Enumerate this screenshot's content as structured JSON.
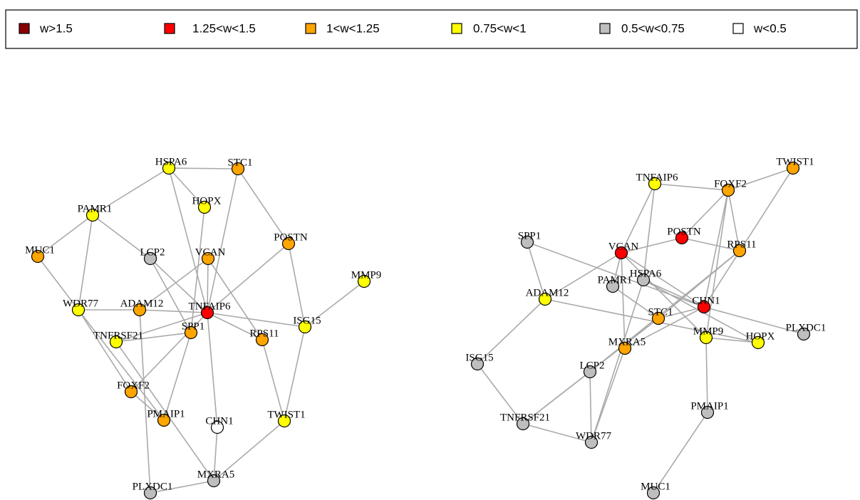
{
  "legend": {
    "items": [
      {
        "label": "w>1.5",
        "color": "#8B0000"
      },
      {
        "label": "1.25<w<1.5",
        "color": "#FF0000"
      },
      {
        "label": "1<w<1.25",
        "color": "#FFA500"
      },
      {
        "label": "0.75<w<1",
        "color": "#FFFF00"
      },
      {
        "label": "0.5<w<0.75",
        "color": "#BEBEBE"
      },
      {
        "label": "w<0.5",
        "color": "#FFFFFF"
      }
    ]
  },
  "networks": [
    {
      "nodes": [
        {
          "label": "HSPA6",
          "color": "#FFFF00"
        },
        {
          "label": "STC1",
          "color": "#FFA500"
        },
        {
          "label": "HOPX",
          "color": "#FFFF00"
        },
        {
          "label": "PAMR1",
          "color": "#FFFF00"
        },
        {
          "label": "POSTN",
          "color": "#FFA500"
        },
        {
          "label": "MUC1",
          "color": "#FFA500"
        },
        {
          "label": "LCP2",
          "color": "#BEBEBE"
        },
        {
          "label": "VCAN",
          "color": "#FFA500"
        },
        {
          "label": "MMP9",
          "color": "#FFFF00"
        },
        {
          "label": "WDR77",
          "color": "#FFFF00"
        },
        {
          "label": "ADAM12",
          "color": "#FFA500"
        },
        {
          "label": "TNFAIP6",
          "color": "#FF0000"
        },
        {
          "label": "ISG15",
          "color": "#FFFF00"
        },
        {
          "label": "SPP1",
          "color": "#FFA500"
        },
        {
          "label": "RPS11",
          "color": "#FFA500"
        },
        {
          "label": "TNFRSF21",
          "color": "#FFFF00"
        },
        {
          "label": "FOXF2",
          "color": "#FFA500"
        },
        {
          "label": "PMAIP1",
          "color": "#FFA500"
        },
        {
          "label": "CHN1",
          "color": "#FFFFFF"
        },
        {
          "label": "TWIST1",
          "color": "#FFFF00"
        },
        {
          "label": "MXRA5",
          "color": "#BEBEBE"
        },
        {
          "label": "PLXDC1",
          "color": "#BEBEBE"
        }
      ],
      "edges": [
        [
          0,
          1
        ],
        [
          0,
          3
        ],
        [
          0,
          2
        ],
        [
          0,
          11
        ],
        [
          1,
          4
        ],
        [
          1,
          11
        ],
        [
          2,
          13
        ],
        [
          3,
          5
        ],
        [
          3,
          6
        ],
        [
          3,
          9
        ],
        [
          5,
          9
        ],
        [
          6,
          11
        ],
        [
          6,
          13
        ],
        [
          7,
          11
        ],
        [
          7,
          14
        ],
        [
          7,
          10
        ],
        [
          4,
          11
        ],
        [
          4,
          12
        ],
        [
          8,
          12
        ],
        [
          9,
          10
        ],
        [
          9,
          16
        ],
        [
          9,
          17
        ],
        [
          10,
          11
        ],
        [
          10,
          21
        ],
        [
          11,
          14
        ],
        [
          11,
          12
        ],
        [
          11,
          15
        ],
        [
          11,
          16
        ],
        [
          11,
          18
        ],
        [
          13,
          17
        ],
        [
          13,
          15
        ],
        [
          14,
          19
        ],
        [
          12,
          19
        ],
        [
          15,
          20
        ],
        [
          16,
          17
        ],
        [
          18,
          20
        ],
        [
          19,
          20
        ],
        [
          20,
          21
        ]
      ]
    },
    {
      "nodes": [
        {
          "label": "TWIST1",
          "color": "#FFA500"
        },
        {
          "label": "TNFAIP6",
          "color": "#FFFF00"
        },
        {
          "label": "FOXF2",
          "color": "#FFA500"
        },
        {
          "label": "POSTN",
          "color": "#FF0000"
        },
        {
          "label": "SPP1",
          "color": "#BEBEBE"
        },
        {
          "label": "VCAN",
          "color": "#FF0000"
        },
        {
          "label": "RPS11",
          "color": "#FFA500"
        },
        {
          "label": "PAMR1",
          "color": "#BEBEBE"
        },
        {
          "label": "HSPA6",
          "color": "#BEBEBE"
        },
        {
          "label": "ADAM12",
          "color": "#FFFF00"
        },
        {
          "label": "CHN1",
          "color": "#FF0000"
        },
        {
          "label": "STC1",
          "color": "#FFA500"
        },
        {
          "label": "MMP9",
          "color": "#FFFF00"
        },
        {
          "label": "HOPX",
          "color": "#FFFF00"
        },
        {
          "label": "PLXDC1",
          "color": "#BEBEBE"
        },
        {
          "label": "MXRA5",
          "color": "#FFA500"
        },
        {
          "label": "ISG15",
          "color": "#BEBEBE"
        },
        {
          "label": "LCP2",
          "color": "#BEBEBE"
        },
        {
          "label": "PMAIP1",
          "color": "#BEBEBE"
        },
        {
          "label": "TNFRSF21",
          "color": "#BEBEBE"
        },
        {
          "label": "WDR77",
          "color": "#BEBEBE"
        },
        {
          "label": "MUC1",
          "color": "#BEBEBE"
        }
      ],
      "edges": [
        [
          1,
          2
        ],
        [
          1,
          5
        ],
        [
          1,
          8
        ],
        [
          2,
          0
        ],
        [
          2,
          3
        ],
        [
          2,
          6
        ],
        [
          2,
          12
        ],
        [
          2,
          10
        ],
        [
          0,
          10
        ],
        [
          3,
          5
        ],
        [
          3,
          6
        ],
        [
          4,
          9
        ],
        [
          4,
          10
        ],
        [
          5,
          9
        ],
        [
          5,
          10
        ],
        [
          5,
          12
        ],
        [
          5,
          7
        ],
        [
          5,
          15
        ],
        [
          8,
          10
        ],
        [
          8,
          20
        ],
        [
          7,
          11
        ],
        [
          6,
          17
        ],
        [
          6,
          11
        ],
        [
          9,
          16
        ],
        [
          9,
          13
        ],
        [
          10,
          11
        ],
        [
          10,
          14
        ],
        [
          10,
          15
        ],
        [
          11,
          17
        ],
        [
          12,
          18
        ],
        [
          12,
          13
        ],
        [
          15,
          20
        ],
        [
          17,
          19
        ],
        [
          17,
          20
        ],
        [
          16,
          19
        ],
        [
          19,
          20
        ],
        [
          18,
          21
        ],
        [
          11,
          19
        ],
        [
          8,
          13
        ]
      ]
    }
  ]
}
